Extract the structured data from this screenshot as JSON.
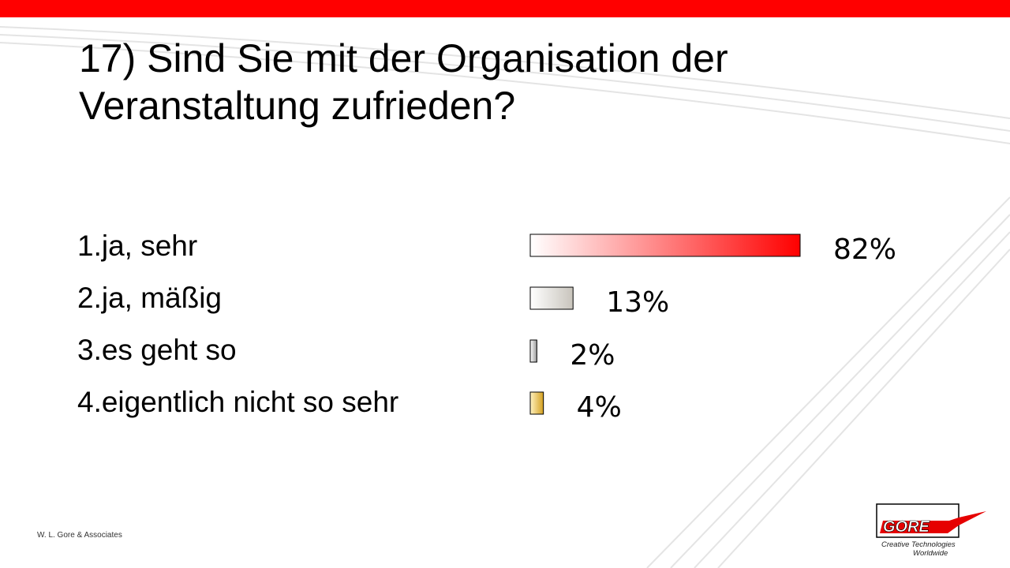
{
  "slide": {
    "title_line1": "17) Sind Sie mit der Organisation der",
    "title_line2": "Veranstaltung zufrieden?",
    "footer": "W. L. Gore & Associates",
    "accent_color": "#ff0000"
  },
  "answers": [
    "1.ja, sehr",
    "2.ja, mäßig",
    "3.es geht so",
    "4.eigentlich nicht so sehr"
  ],
  "logo": {
    "wordmark": "GORE",
    "tagline_line1": "Creative Technologies",
    "tagline_line2": "Worldwide"
  },
  "chart_data": {
    "type": "bar",
    "orientation": "horizontal",
    "categories": [
      "1.ja, sehr",
      "2.ja, mäßig",
      "3.es geht so",
      "4.eigentlich nicht so sehr"
    ],
    "values": [
      82,
      13,
      2,
      4
    ],
    "value_labels": [
      "82%",
      "13%",
      "2%",
      "4%"
    ],
    "unit": "%",
    "xlim": [
      0,
      100
    ],
    "grid": false,
    "legend": "none",
    "colors": [
      [
        "#ffffff",
        "#ff0000"
      ],
      [
        "#ffffff",
        "#c8c4bc"
      ],
      [
        "#ffffff",
        "#9a9a9a"
      ],
      [
        "#fff2c0",
        "#d4a020"
      ]
    ]
  }
}
